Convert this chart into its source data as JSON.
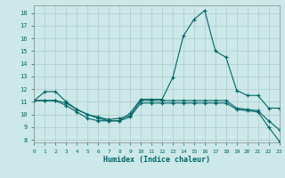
{
  "xlabel": "Humidex (Indice chaleur)",
  "bg_color": "#cce8e8",
  "grid_color": "#aacccc",
  "line_color": "#006666",
  "xlim": [
    0,
    23
  ],
  "ylim": [
    7.8,
    18.6
  ],
  "xtick_vals": [
    0,
    1,
    2,
    3,
    4,
    5,
    6,
    7,
    8,
    9,
    10,
    11,
    12,
    13,
    14,
    15,
    16,
    17,
    18,
    19,
    20,
    21,
    22,
    23
  ],
  "ytick_vals": [
    8,
    9,
    10,
    11,
    12,
    13,
    14,
    15,
    16,
    17,
    18
  ],
  "line1_x": [
    0,
    1,
    2,
    3,
    4,
    5,
    6,
    7,
    8,
    9,
    10,
    11,
    12,
    13,
    14,
    15,
    16,
    17,
    18,
    19,
    20,
    21,
    22,
    23
  ],
  "line1_y": [
    11.1,
    11.8,
    11.8,
    11.0,
    10.4,
    10.0,
    9.7,
    9.5,
    9.5,
    10.1,
    11.2,
    11.2,
    11.2,
    12.9,
    16.2,
    17.5,
    18.2,
    15.0,
    14.5,
    11.9,
    11.5,
    11.5,
    10.5,
    10.5
  ],
  "line2_x": [
    0,
    1,
    2,
    3,
    4,
    5,
    6,
    7,
    8,
    9,
    10,
    11,
    12,
    13,
    14,
    15,
    16,
    17,
    18,
    19,
    20,
    21,
    22,
    23
  ],
  "line2_y": [
    11.1,
    11.1,
    11.1,
    10.9,
    10.4,
    10.0,
    9.8,
    9.6,
    9.7,
    9.9,
    11.1,
    11.1,
    11.1,
    11.1,
    11.1,
    11.1,
    11.1,
    11.1,
    11.1,
    10.5,
    10.4,
    10.3,
    9.5,
    8.8
  ],
  "line3_x": [
    0,
    1,
    2,
    3,
    4,
    5,
    6,
    7,
    8,
    9,
    10,
    11,
    12,
    13,
    14,
    15,
    16,
    17,
    18,
    19,
    20,
    21,
    22,
    23
  ],
  "line3_y": [
    11.1,
    11.1,
    11.1,
    10.7,
    10.2,
    9.7,
    9.5,
    9.5,
    9.5,
    9.8,
    10.9,
    10.9,
    10.9,
    10.9,
    10.9,
    10.9,
    10.9,
    10.9,
    10.9,
    10.4,
    10.3,
    10.2,
    9.0,
    7.9
  ]
}
